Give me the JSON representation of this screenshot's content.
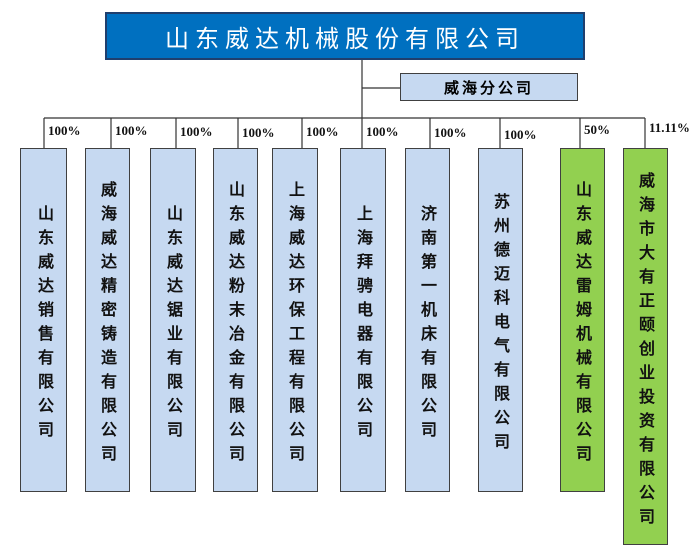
{
  "header": {
    "title": "山东威达机械股份有限公司",
    "color": "#0070c0"
  },
  "branch": {
    "label": "威海分公司",
    "color": "#c6d9f1"
  },
  "subsidiaries": [
    {
      "name": "山东威达销售有限公司",
      "share": "100%",
      "color": "#c6d9f1"
    },
    {
      "name": "威海威达精密铸造有限公司",
      "share": "100%",
      "color": "#c6d9f1"
    },
    {
      "name": "山东威达锯业有限公司",
      "share": "100%",
      "color": "#c6d9f1"
    },
    {
      "name": "山东威达粉末冶金有限公司",
      "share": "100%",
      "color": "#c6d9f1"
    },
    {
      "name": "上海威达环保工程有限公司",
      "share": "100%",
      "color": "#c6d9f1"
    },
    {
      "name": "上海拜骋电器有限公司",
      "share": "100%",
      "color": "#c6d9f1"
    },
    {
      "name": "济南第一机床有限公司",
      "share": "100%",
      "color": "#c6d9f1"
    },
    {
      "name": "苏州德迈科电气有限公司",
      "share": "100%",
      "color": "#c6d9f1"
    },
    {
      "name": "山东威达雷姆机械有限公司",
      "share": "50%",
      "color": "#92d050"
    },
    {
      "name": "威海市大有正颐创业投资有限公司",
      "share": "11.11%",
      "color": "#92d050"
    }
  ]
}
